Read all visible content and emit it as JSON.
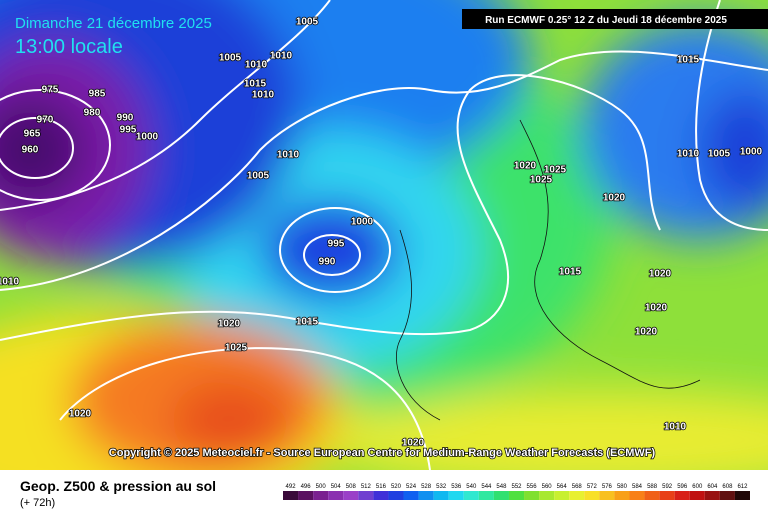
{
  "header": {
    "date": "Dimanche 21 décembre 2025",
    "time": "13:00 locale",
    "run": "Run ECMWF 0.25° 12 Z du Jeudi 18 décembre 2025"
  },
  "copyright": "Copyright © 2025 Meteociel.fr - Source European Centre for Medium-Range Weather Forecasts (ECMWF)",
  "footer": {
    "title": "Geop. Z500 & pression au sol",
    "range": "(+ 72h)"
  },
  "isobar_labels": [
    "1005",
    "1005",
    "1010",
    "1010",
    "1015",
    "1010",
    "975",
    "985",
    "970",
    "980",
    "990",
    "995",
    "965",
    "1000",
    "960",
    "1010",
    "1005",
    "1000",
    "995",
    "990",
    "1010",
    "1015",
    "1020",
    "1025",
    "1020",
    "1020",
    "1015",
    "1020",
    "1025",
    "1025",
    "1010",
    "1005",
    "1000",
    "1020",
    "1015",
    "1020",
    "1020",
    "1020",
    "1010"
  ],
  "scale": {
    "labels": [
      "492",
      "496",
      "500",
      "504",
      "508",
      "512",
      "516",
      "520",
      "524",
      "528",
      "532",
      "536",
      "540",
      "544",
      "548",
      "552",
      "556",
      "560",
      "564",
      "568",
      "572",
      "576",
      "580",
      "584",
      "588",
      "592",
      "596",
      "600",
      "604",
      "608",
      "612"
    ],
    "colors": [
      "#3a0a3a",
      "#5a1060",
      "#7a2090",
      "#8a30b0",
      "#9a40c8",
      "#7040d0",
      "#4030d8",
      "#2040e0",
      "#1060f0",
      "#1090f0",
      "#10b8f0",
      "#20d8f0",
      "#30e8d0",
      "#30e8a0",
      "#30e070",
      "#50e040",
      "#80e030",
      "#a8e830",
      "#c8f030",
      "#e8f030",
      "#f8e028",
      "#f8c020",
      "#f8a018",
      "#f88018",
      "#f06018",
      "#e84018",
      "#d82018",
      "#c01010",
      "#981010",
      "#601010",
      "#200808"
    ]
  }
}
